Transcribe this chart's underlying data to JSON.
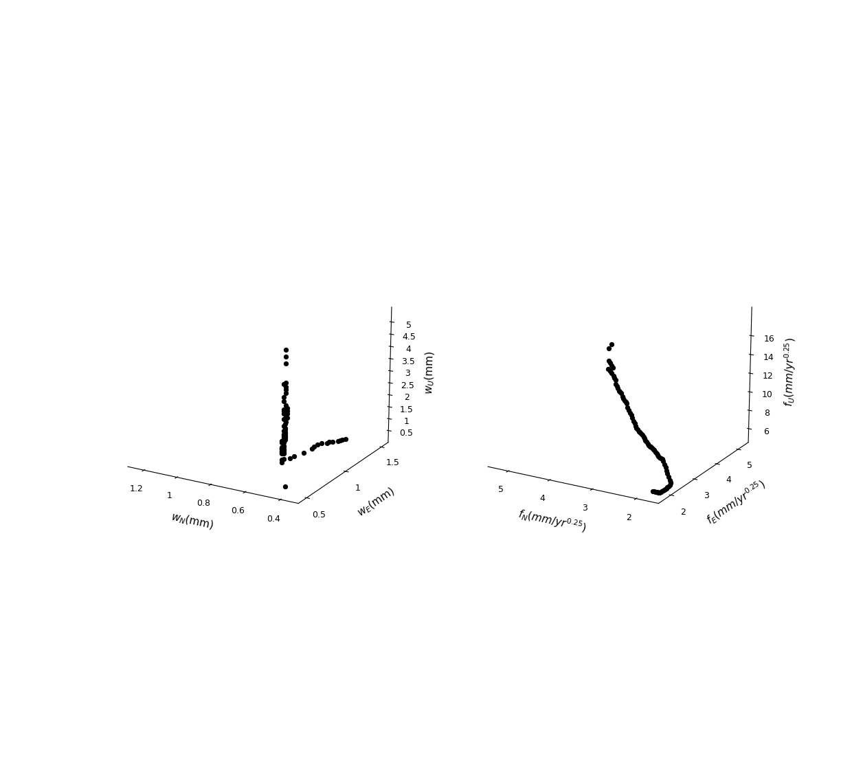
{
  "plot1": {
    "wN": [
      0.42,
      0.42,
      0.42,
      0.42,
      0.43,
      0.42,
      0.42,
      0.42,
      0.43,
      0.43,
      0.42,
      0.41,
      0.42,
      0.43,
      0.42,
      0.41,
      0.42,
      0.43,
      0.42,
      0.41,
      0.43,
      0.42,
      0.41,
      0.43,
      0.42,
      0.42,
      0.43,
      0.42,
      0.42,
      0.43,
      0.42,
      0.42,
      0.43,
      0.43,
      0.42,
      0.42,
      0.43,
      0.43,
      0.42,
      0.43,
      0.42,
      0.43,
      0.43,
      0.44,
      0.44,
      0.43,
      0.44,
      0.43,
      0.43,
      0.44,
      0.44,
      0.44,
      0.44,
      0.43,
      0.43,
      0.44,
      0.44,
      0.43,
      0.44,
      0.43,
      0.44,
      0.44,
      0.43,
      0.44,
      0.44,
      0.44,
      0.44,
      0.43,
      0.43,
      0.44,
      0.44,
      0.44,
      0.43,
      0.44,
      0.44,
      0.43,
      0.44,
      0.45,
      0.45,
      0.42
    ],
    "wE": [
      0.5,
      0.5,
      0.5,
      0.5,
      0.5,
      0.5,
      0.5,
      0.5,
      0.5,
      0.5,
      0.5,
      0.5,
      0.5,
      0.5,
      0.5,
      0.5,
      0.5,
      0.5,
      0.5,
      0.5,
      0.5,
      0.5,
      0.5,
      0.5,
      0.5,
      0.5,
      0.5,
      0.5,
      0.5,
      0.5,
      0.5,
      0.5,
      0.5,
      0.5,
      0.5,
      0.5,
      0.5,
      0.5,
      0.5,
      0.5,
      0.5,
      0.5,
      0.5,
      0.5,
      0.5,
      0.5,
      0.5,
      0.5,
      0.5,
      0.5,
      0.5,
      0.5,
      0.5,
      0.5,
      0.5,
      0.5,
      0.5,
      0.5,
      0.5,
      0.5,
      0.5,
      0.5,
      0.5,
      0.5,
      0.5,
      0.6,
      0.65,
      0.75,
      0.85,
      0.9,
      0.95,
      1.0,
      1.05,
      1.1,
      1.15,
      1.2,
      1.25,
      1.3,
      1.35,
      0.5
    ],
    "wU": [
      5.52,
      5.25,
      5.0,
      4.28,
      4.22,
      4.12,
      4.02,
      3.88,
      3.72,
      3.55,
      3.42,
      3.32,
      3.28,
      3.25,
      3.24,
      3.22,
      3.2,
      3.18,
      3.15,
      3.12,
      3.08,
      3.02,
      2.95,
      2.88,
      2.78,
      2.7,
      2.62,
      2.55,
      2.48,
      2.42,
      2.38,
      2.32,
      2.28,
      2.26,
      2.24,
      2.22,
      2.22,
      2.2,
      2.18,
      2.12,
      2.08,
      2.05,
      2.02,
      2.0,
      2.0,
      1.98,
      1.95,
      1.85,
      1.82,
      1.78,
      1.75,
      1.73,
      1.72,
      1.7,
      1.68,
      1.65,
      1.62,
      1.6,
      1.58,
      1.55,
      1.55,
      1.52,
      1.32,
      1.28,
      1.18,
      1.15,
      1.12,
      1.08,
      1.05,
      1.0,
      0.98,
      0.95,
      0.88,
      0.82,
      0.72,
      0.65,
      0.58,
      0.5,
      0.42,
      0.28
    ],
    "xlim_min": 1.3,
    "xlim_max": 0.3,
    "ylim_min": 0.4,
    "ylim_max": 1.6,
    "zlim_min": 0.0,
    "zlim_max": 5.6,
    "xticks": [
      1.2,
      1.0,
      0.8,
      0.6,
      0.4
    ],
    "xticklabels": [
      "1.2",
      "1",
      "0.8",
      "0.6",
      "0.4"
    ],
    "yticks": [
      0.5,
      1.0,
      1.5
    ],
    "yticklabels": [
      "0.5",
      "1",
      "1.5"
    ],
    "zticks": [
      0.5,
      1.0,
      1.5,
      2.0,
      2.5,
      3.0,
      3.5,
      4.0,
      4.5,
      5.0
    ],
    "zticklabels": [
      "0.5",
      "1",
      "1.5",
      "2",
      "2.5",
      "3",
      "3.5",
      "4",
      "4.5",
      "5"
    ],
    "xlabel": "$w_N$(mm)",
    "ylabel": "$w_E$(mm)",
    "zlabel": "$w_U$(mm)"
  },
  "plot2": {
    "fN": [
      2.85,
      2.9,
      2.9,
      2.88,
      2.85,
      2.82,
      2.92,
      2.88,
      2.85,
      2.8,
      2.78,
      2.75,
      2.75,
      2.72,
      2.7,
      2.68,
      2.65,
      2.62,
      2.6,
      2.58,
      2.55,
      2.52,
      2.5,
      2.48,
      2.45,
      2.42,
      2.4,
      2.38,
      2.35,
      2.32,
      2.3,
      2.28,
      2.25,
      2.22,
      2.2,
      2.18,
      2.15,
      2.12,
      2.1,
      2.08,
      2.05,
      2.02,
      2.0,
      1.98,
      1.95,
      1.92,
      1.9,
      1.88,
      1.85,
      1.82,
      1.8,
      1.78,
      1.75,
      1.72,
      1.7,
      1.68,
      1.65,
      1.62,
      1.6,
      1.58,
      1.55,
      1.52,
      1.5,
      1.5,
      1.52,
      1.55,
      1.58,
      1.6,
      1.62,
      1.65,
      1.68,
      1.7,
      1.72,
      1.75,
      1.78,
      1.8,
      1.82,
      1.85,
      1.88,
      1.9
    ],
    "fE": [
      2.0,
      2.0,
      2.0,
      2.0,
      2.0,
      2.0,
      2.0,
      2.0,
      2.0,
      2.0,
      2.0,
      2.0,
      2.0,
      2.0,
      2.0,
      2.0,
      2.0,
      2.0,
      2.0,
      2.0,
      2.0,
      2.0,
      2.0,
      2.0,
      2.0,
      2.0,
      2.0,
      2.0,
      2.0,
      2.0,
      2.0,
      2.0,
      2.0,
      2.0,
      2.0,
      2.0,
      2.0,
      2.0,
      2.0,
      2.0,
      2.0,
      2.0,
      2.0,
      2.0,
      2.0,
      2.0,
      2.0,
      2.0,
      2.0,
      2.0,
      2.0,
      2.0,
      2.0,
      2.0,
      2.0,
      2.0,
      2.0,
      2.0,
      2.0,
      2.0,
      2.0,
      2.0,
      2.0,
      2.0,
      2.0,
      2.0,
      2.0,
      2.0,
      2.0,
      2.0,
      2.0,
      2.0,
      2.0,
      2.0,
      2.0,
      2.0,
      2.0,
      2.0,
      2.0,
      2.0
    ],
    "fU": [
      18.5,
      18.0,
      16.8,
      16.6,
      16.4,
      16.2,
      16.0,
      15.8,
      15.6,
      15.4,
      15.2,
      15.0,
      14.6,
      14.4,
      14.2,
      14.0,
      13.9,
      13.8,
      13.5,
      13.3,
      13.1,
      13.0,
      12.9,
      12.5,
      12.2,
      12.0,
      11.8,
      11.5,
      11.2,
      11.0,
      10.8,
      10.6,
      10.5,
      10.3,
      10.2,
      10.1,
      10.0,
      9.8,
      9.7,
      9.5,
      9.4,
      9.2,
      9.1,
      9.0,
      9.0,
      8.9,
      8.8,
      8.7,
      8.5,
      8.4,
      8.3,
      8.2,
      8.1,
      8.0,
      8.0,
      7.8,
      7.5,
      7.2,
      6.9,
      6.6,
      6.3,
      6.0,
      5.8,
      5.7,
      5.5,
      5.3,
      5.2,
      5.1,
      5.0,
      4.9,
      4.8,
      4.7,
      4.6,
      4.5,
      4.5,
      4.5,
      4.5,
      4.5,
      4.5,
      4.5
    ],
    "xlim_min": 5.5,
    "xlim_max": 1.5,
    "ylim_min": 1.5,
    "ylim_max": 5.5,
    "zlim_min": 4.5,
    "zlim_max": 19.0,
    "xticks": [
      5,
      4,
      3,
      2
    ],
    "xticklabels": [
      "5",
      "4",
      "3",
      "2"
    ],
    "yticks": [
      2,
      3,
      4,
      5
    ],
    "yticklabels": [
      "2",
      "3",
      "4",
      "5"
    ],
    "zticks": [
      6,
      8,
      10,
      12,
      14,
      16
    ],
    "zticklabels": [
      "6",
      "8",
      "10",
      "12",
      "14",
      "16"
    ],
    "xlabel": "$f_N$($mm/yr^{0.25}$)",
    "ylabel": "$f_E$($mm/yr^{0.25}$)",
    "zlabel": "$f_U$($mm/yr^{0.25}$)"
  },
  "dot_color": "#000000",
  "dot_size": 18,
  "background_color": "#ffffff",
  "tick_fontsize": 9,
  "label_fontsize": 11,
  "elev1": 18,
  "azim1": -60,
  "elev2": 18,
  "azim2": -60
}
